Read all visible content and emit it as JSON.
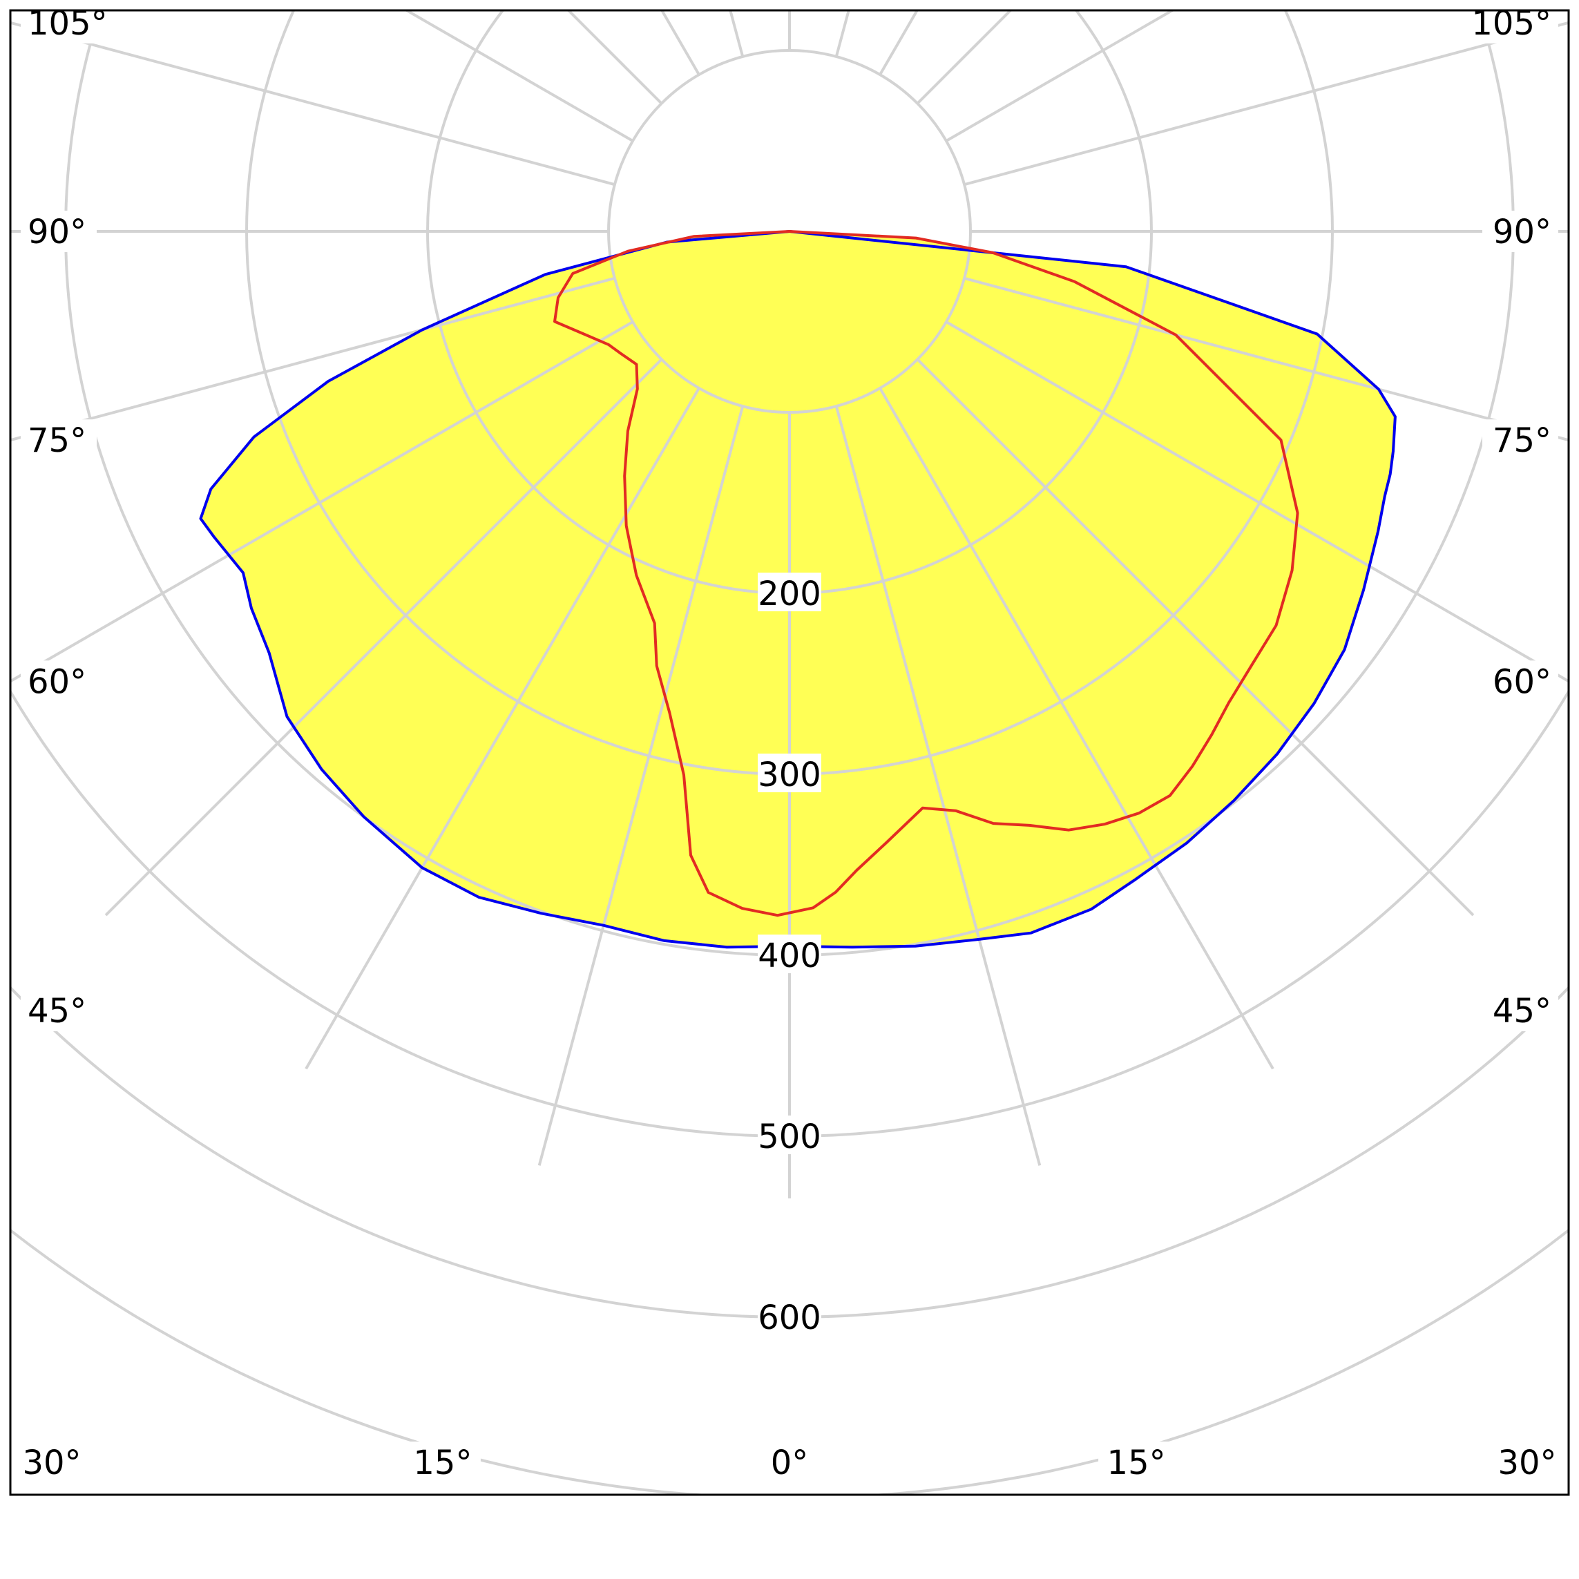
{
  "chart_data": {
    "type": "polar",
    "title": "",
    "unit": "",
    "grid": true,
    "radial_axis": {
      "min": 0,
      "max": 700,
      "ticks": [
        100,
        200,
        300,
        400,
        500,
        600,
        700
      ],
      "tick_labels": [
        {
          "value": 200,
          "label": "200"
        },
        {
          "value": 300,
          "label": "300"
        },
        {
          "value": 400,
          "label": "400"
        },
        {
          "value": 500,
          "label": "500"
        },
        {
          "value": 600,
          "label": "600"
        }
      ]
    },
    "angle_axis": {
      "spokes": [
        0,
        15,
        30,
        45,
        60,
        75,
        90,
        105,
        120,
        135,
        150,
        165,
        180
      ],
      "tick_labels": [
        {
          "side": "left",
          "angle": 105,
          "label": "105°"
        },
        {
          "side": "right",
          "angle": 105,
          "label": "105°"
        },
        {
          "side": "left",
          "angle": 90,
          "label": "90°"
        },
        {
          "side": "right",
          "angle": 90,
          "label": "90°"
        },
        {
          "side": "left",
          "angle": 75,
          "label": "75°"
        },
        {
          "side": "right",
          "angle": 75,
          "label": "75°"
        },
        {
          "side": "left",
          "angle": 60,
          "label": "60°"
        },
        {
          "side": "right",
          "angle": 60,
          "label": "60°"
        },
        {
          "side": "left",
          "angle": 45,
          "label": "45°"
        },
        {
          "side": "right",
          "angle": 45,
          "label": "45°"
        },
        {
          "side": "left",
          "angle": 30,
          "label": "30°"
        },
        {
          "side": "left",
          "angle": 15,
          "label": "15°"
        },
        {
          "side": "center",
          "angle": 0,
          "label": "0°"
        },
        {
          "side": "right",
          "angle": 15,
          "label": "15°"
        },
        {
          "side": "right",
          "angle": 30,
          "label": "30°"
        }
      ]
    },
    "colors": {
      "fill": "#ffff55",
      "blue_curve": "#0000ee",
      "red_curve": "#e22b22",
      "grid": "#d3d3d3",
      "frame": "#000000"
    },
    "series": [
      {
        "color": "#0000ee",
        "points": [
          [
            -90,
            0
          ],
          [
            -85,
            68
          ],
          [
            -80,
            137
          ],
          [
            -75,
            210
          ],
          [
            -72,
            268
          ],
          [
            -69,
            317
          ],
          [
            -66,
            350
          ],
          [
            -64,
            362
          ],
          [
            -62,
            360
          ],
          [
            -58,
            356
          ],
          [
            -55,
            363
          ],
          [
            -51,
            370
          ],
          [
            -46,
            386
          ],
          [
            -41,
            394
          ],
          [
            -36,
            400
          ],
          [
            -30,
            406
          ],
          [
            -25,
            406
          ],
          [
            -20,
            401
          ],
          [
            -15,
            397
          ],
          [
            -10,
            398
          ],
          [
            -5,
            397
          ],
          [
            0,
            395
          ],
          [
            5,
            397
          ],
          [
            10,
            401
          ],
          [
            15,
            405
          ],
          [
            19,
            410
          ],
          [
            24,
            410
          ],
          [
            28,
            406
          ],
          [
            33,
            403
          ],
          [
            38,
            399
          ],
          [
            43,
            395
          ],
          [
            48,
            390
          ],
          [
            53,
            384
          ],
          [
            58,
            374
          ],
          [
            63,
            365
          ],
          [
            66,
            360
          ],
          [
            68,
            358
          ],
          [
            70,
            355
          ],
          [
            73,
            350
          ],
          [
            75,
            337
          ],
          [
            79,
            297
          ],
          [
            84,
            187
          ],
          [
            90,
            0
          ]
        ]
      },
      {
        "color": "#e22b22",
        "points": [
          [
            -90,
            0
          ],
          [
            -87,
            53
          ],
          [
            -83,
            90
          ],
          [
            -79,
            122
          ],
          [
            -74,
            133
          ],
          [
            -69,
            139
          ],
          [
            -64,
            128
          ],
          [
            -58,
            118
          ],
          [
            -54,
            115
          ],
          [
            -49,
            112
          ],
          [
            -44,
            121
          ],
          [
            -39,
            142
          ],
          [
            -34,
            163
          ],
          [
            -29,
            186
          ],
          [
            -24,
            208
          ],
          [
            -19,
            229
          ],
          [
            -17,
            251
          ],
          [
            -14,
            274
          ],
          [
            -11,
            306
          ],
          [
            -9,
            349
          ],
          [
            -7,
            368
          ],
          [
            -4,
            375
          ],
          [
            -1,
            378
          ],
          [
            2,
            374
          ],
          [
            4,
            366
          ],
          [
            6,
            355
          ],
          [
            9,
            342
          ],
          [
            13,
            327
          ],
          [
            16,
            333
          ],
          [
            19,
            346
          ],
          [
            22,
            354
          ],
          [
            25,
            365
          ],
          [
            28,
            371
          ],
          [
            31,
            375
          ],
          [
            34,
            376
          ],
          [
            37,
            370
          ],
          [
            40,
            363
          ],
          [
            43,
            356
          ],
          [
            47,
            350
          ],
          [
            51,
            346
          ],
          [
            56,
            335
          ],
          [
            61,
            321
          ],
          [
            67,
            295
          ],
          [
            75,
            221
          ],
          [
            80,
            160
          ],
          [
            84,
            113
          ],
          [
            87,
            70
          ],
          [
            90,
            0
          ]
        ]
      }
    ]
  }
}
